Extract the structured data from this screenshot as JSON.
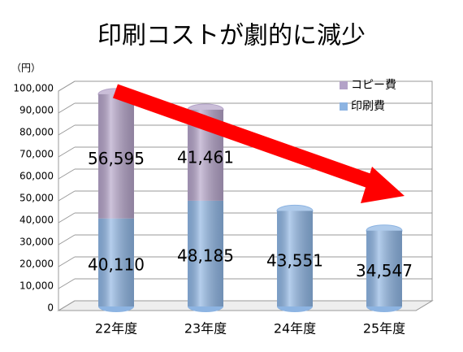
{
  "chart_data": {
    "type": "bar",
    "stacked": true,
    "title": "印刷コストが劇的に減少",
    "y_label": "（円）",
    "categories": [
      "22年度",
      "23年度",
      "24年度",
      "25年度"
    ],
    "series": [
      {
        "name": "印刷費",
        "color": "#8db4e2",
        "values": [
          40110,
          48185,
          43551,
          34547
        ],
        "value_labels": [
          "40,110",
          "48,185",
          "43,551",
          "34,547"
        ]
      },
      {
        "name": "コピー費",
        "color": "#b3a2c7",
        "values": [
          56595,
          41461,
          null,
          null
        ],
        "value_labels": [
          "56,595",
          "41,461",
          null,
          null
        ]
      }
    ],
    "ylim": [
      0,
      100000
    ],
    "yticks": [
      0,
      {
        "value": 10000,
        "label": "10,000"
      },
      {
        "value": 20000,
        "label": "20,000"
      },
      {
        "value": 30000,
        "label": "30,000"
      },
      {
        "value": 40000,
        "label": "40,000"
      },
      {
        "value": 50000,
        "label": "50,000"
      },
      {
        "value": 60000,
        "label": "60,000"
      },
      {
        "value": 70000,
        "label": "70,000"
      },
      {
        "value": 80000,
        "label": "80,000"
      },
      {
        "value": 90000,
        "label": "90,000"
      },
      {
        "value": 100000,
        "label": "100,000"
      }
    ],
    "grid": true,
    "legend": "top-right"
  }
}
